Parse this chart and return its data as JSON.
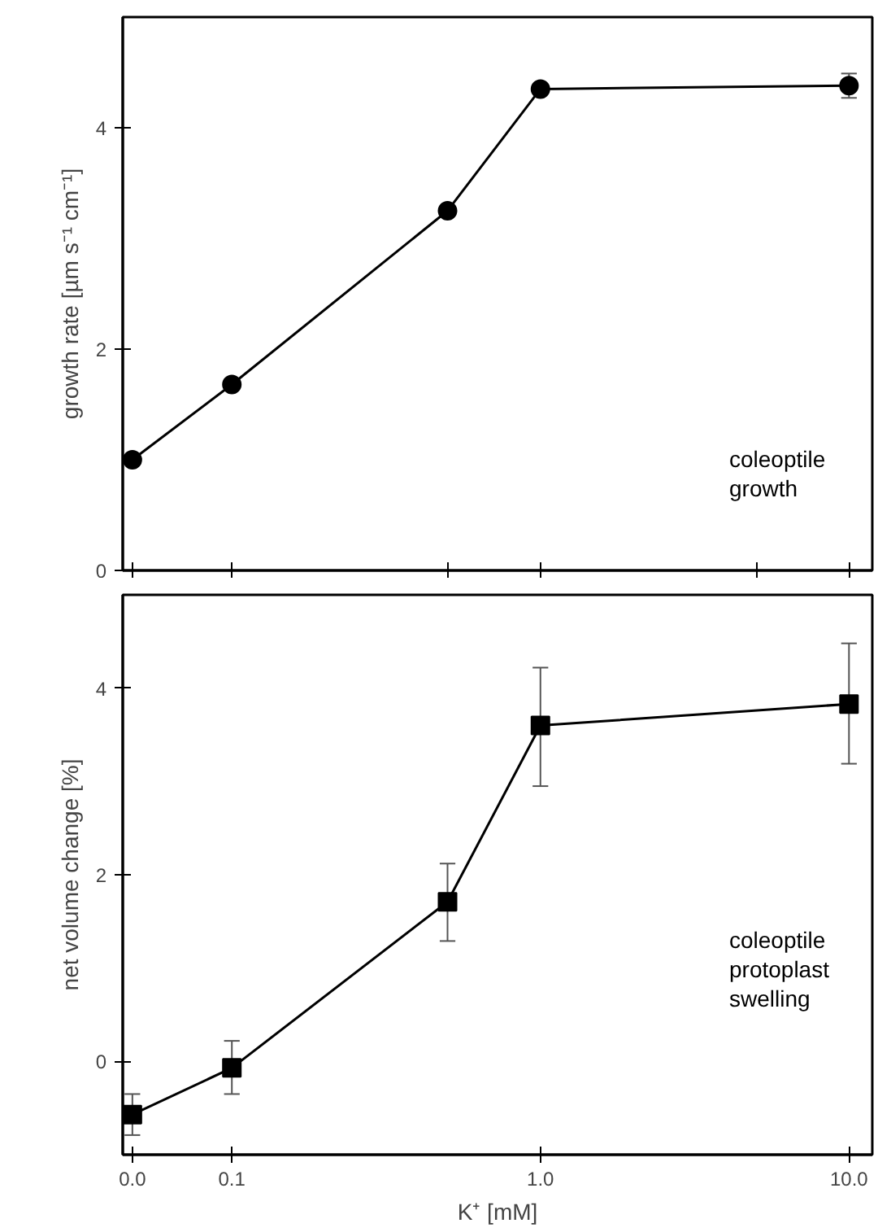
{
  "chart_data": [
    {
      "type": "line",
      "x": [
        0.0476,
        0.1,
        0.5,
        1.0,
        10.0
      ],
      "ylabel": "growth rate [µm s⁻¹ cm⁻¹]",
      "series": [
        {
          "color": "#000000",
          "values": [
            1.0,
            1.68,
            3.25,
            4.35,
            4.38
          ],
          "errors": [
            null,
            null,
            null,
            null,
            0.11
          ]
        }
      ],
      "log": "x",
      "xlim": [
        0.0443,
        11.9
      ],
      "ylim": [
        0,
        5
      ],
      "xticks": [
        {
          "value": 0.0476,
          "label": null
        },
        {
          "value": 0.1,
          "label": null
        },
        {
          "value": 0.5,
          "label": null
        },
        {
          "value": 1.0,
          "label": null
        },
        {
          "value": 5,
          "label": null
        },
        {
          "value": 10.0,
          "label": null
        }
      ],
      "yticks": [
        0,
        2,
        4
      ],
      "marker": "circle",
      "grid": false,
      "tick_labels": "y",
      "annotations": [
        "coleoptile\ngrowth"
      ]
    },
    {
      "type": "line",
      "x": [
        0.0476,
        0.1,
        0.5,
        1.0,
        10.0
      ],
      "xlabel": "K⁺ [mM]",
      "ylabel": "net volume change [%]",
      "series": [
        {
          "color": "#000000",
          "values": [
            -0.57,
            -0.07,
            1.71,
            3.6,
            3.83
          ],
          "errors": [
            [
              -0.79,
              -0.35
            ],
            [
              -0.35,
              0.22
            ],
            [
              1.29,
              2.12
            ],
            [
              2.95,
              4.22
            ],
            [
              3.19,
              4.48
            ]
          ]
        }
      ],
      "log": "x",
      "xlim": [
        0.0443,
        11.9
      ],
      "ylim": [
        -1,
        5
      ],
      "xticks": [
        {
          "value": 0.0476,
          "label": "0.0"
        },
        {
          "value": 0.1,
          "label": "0.1"
        },
        {
          "value": 1.0,
          "label": "1.0"
        },
        {
          "value": 10.0,
          "label": "10.0"
        }
      ],
      "yticks": [
        0,
        2,
        4
      ],
      "marker": "square",
      "grid": false,
      "annotations": [
        "coleoptile\nprotoplast\nswelling"
      ]
    }
  ]
}
